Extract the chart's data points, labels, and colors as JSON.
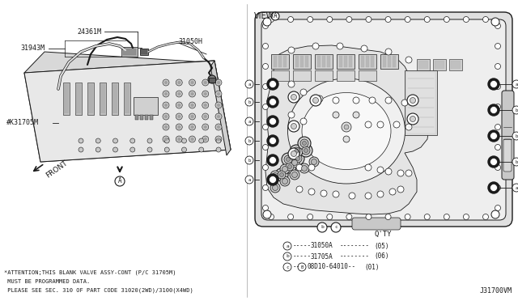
{
  "bg_color": "#ffffff",
  "line_color": "#1a1a1a",
  "gray1": "#e0e0e0",
  "gray2": "#c8c8c8",
  "gray3": "#a0a0a0",
  "gray4": "#707070",
  "attention_text": [
    "*ATTENTION;THIS BLANK VALVE ASSY-CONT (P/C 31705M)",
    " MUST BE PROGRAMMED DATA.",
    " PLEASE SEE SEC. 310 OF PART CODE 31020(2WD)/3100(X4WD)"
  ],
  "qty_label": "Q'TY",
  "legend": [
    {
      "symbol": "a",
      "dashes1": "-----",
      "part": "31050A",
      "dashes2": "--------",
      "qty": "(05)"
    },
    {
      "symbol": "b",
      "dashes1": "-----",
      "part": "31705A",
      "dashes2": "--------",
      "qty": "(06)"
    },
    {
      "symbol": "c",
      "dashes1": "--",
      "bolt": "B",
      "part": "08D10-64010--",
      "dashes2": "",
      "qty": "(01)"
    }
  ],
  "ref_code": "J31700VM",
  "fig_width": 6.4,
  "fig_height": 3.72,
  "dpi": 100
}
